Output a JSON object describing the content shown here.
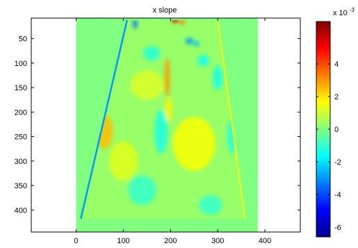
{
  "chart_data": [
    {
      "type": "heatmap",
      "title": "x slope",
      "xlabel": "",
      "ylabel": "",
      "xlim": [
        -95,
        475
      ],
      "ylim": [
        445,
        8
      ],
      "y_reversed": true,
      "xticks": [
        0,
        100,
        200,
        300,
        400
      ],
      "yticks": [
        50,
        100,
        150,
        200,
        250,
        300,
        350,
        400
      ],
      "image_extent": {
        "x": [
          0,
          385
        ],
        "y": [
          8,
          445
        ]
      },
      "background_value": 0,
      "region": {
        "description_free": true,
        "top_y": 12,
        "bottom_y": 418,
        "top_x": [
          108,
          300
        ],
        "bottom_x": [
          10,
          358
        ]
      },
      "features": [
        {
          "x": 210,
          "y": 12,
          "value": 5.5,
          "rx": 8,
          "ry": 6
        },
        {
          "x": 225,
          "y": 16,
          "value": 3.5,
          "rx": 6,
          "ry": 5
        },
        {
          "x": 193,
          "y": 130,
          "value": 3.0,
          "rx": 6,
          "ry": 40
        },
        {
          "x": 196,
          "y": 195,
          "value": 1.8,
          "rx": 8,
          "ry": 25
        },
        {
          "x": 60,
          "y": 240,
          "value": 2.5,
          "rx": 18,
          "ry": 35
        },
        {
          "x": 250,
          "y": 265,
          "value": 1.6,
          "rx": 45,
          "ry": 55
        },
        {
          "x": 150,
          "y": 145,
          "value": 1.2,
          "rx": 35,
          "ry": 30
        },
        {
          "x": 100,
          "y": 300,
          "value": 1.3,
          "rx": 30,
          "ry": 40
        },
        {
          "x": 240,
          "y": 55,
          "value": -3.0,
          "rx": 8,
          "ry": 7
        },
        {
          "x": 255,
          "y": 60,
          "value": -2.5,
          "rx": 6,
          "ry": 6
        },
        {
          "x": 125,
          "y": 20,
          "value": -3.5,
          "rx": 5,
          "ry": 10
        },
        {
          "x": 270,
          "y": 95,
          "value": -1.5,
          "rx": 12,
          "ry": 12
        },
        {
          "x": 160,
          "y": 80,
          "value": -1.2,
          "rx": 18,
          "ry": 15
        },
        {
          "x": 300,
          "y": 130,
          "value": -1.5,
          "rx": 10,
          "ry": 25
        },
        {
          "x": 330,
          "y": 250,
          "value": -1.2,
          "rx": 10,
          "ry": 35
        },
        {
          "x": 140,
          "y": 360,
          "value": -1.0,
          "rx": 30,
          "ry": 30
        },
        {
          "x": 285,
          "y": 390,
          "value": -1.0,
          "rx": 25,
          "ry": 20
        },
        {
          "x": 180,
          "y": 240,
          "value": -1.3,
          "rx": 14,
          "ry": 45
        }
      ],
      "left_edge_value": -3.0,
      "right_edge_value": 1.5,
      "colormap": "jet",
      "colorbar": {
        "range": [
          -6.6,
          6.6
        ],
        "ticks": [
          -6,
          -4,
          -2,
          0,
          2,
          4
        ],
        "tick_labels": [
          "-6",
          "-4",
          "-2",
          "0",
          "2",
          "4"
        ],
        "multiplier_base": "x 10",
        "multiplier_exponent": "-3"
      },
      "grid": false
    }
  ]
}
